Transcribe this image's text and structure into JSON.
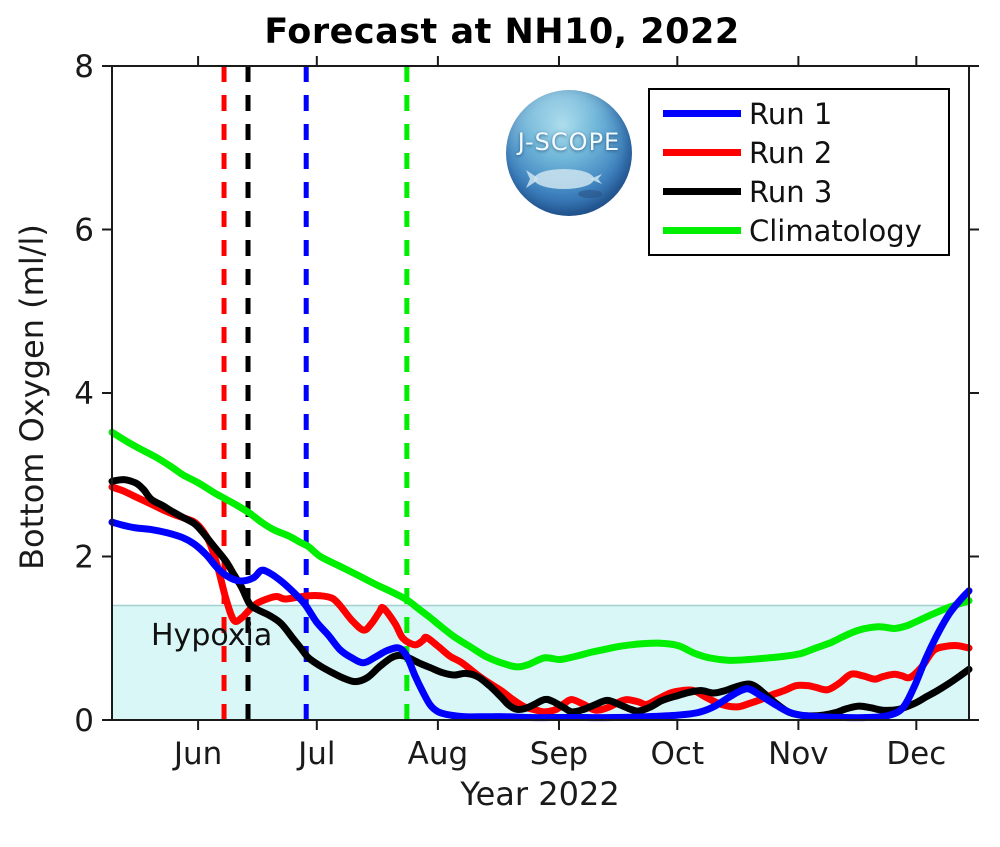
{
  "page": {
    "title": "Forecast at NH10, 2022"
  },
  "logo": {
    "text": "J-SCOPE"
  },
  "chart_data": {
    "type": "line",
    "title": "Forecast at NH10, 2022",
    "xlabel": "Year 2022",
    "ylabel": "Bottom Oxygen (ml/l)",
    "ylim": [
      0,
      8
    ],
    "y_ticks": [
      0,
      2,
      4,
      6,
      8
    ],
    "x_unit": "days since May 10, 2022",
    "xlim": [
      0,
      218
    ],
    "x_ticks": [
      {
        "label": "Jun",
        "day": 21.9
      },
      {
        "label": "Jul",
        "day": 52.1
      },
      {
        "label": "Aug",
        "day": 82.9
      },
      {
        "label": "Sep",
        "day": 113.7
      },
      {
        "label": "Oct",
        "day": 143.8
      },
      {
        "label": "Nov",
        "day": 174.6
      },
      {
        "label": "Dec",
        "day": 204.6
      }
    ],
    "grid": false,
    "legend_position": "top-right",
    "axis_color": "#1a1a1a",
    "hypoxia": {
      "label": "Hypoxia",
      "threshold": 1.4,
      "fill": "#daf7f8",
      "edge": "#a3cfcf"
    },
    "forecast_init_lines": [
      {
        "series": "Run 2",
        "color": "#ff0000",
        "day": 28.5
      },
      {
        "series": "Run 3",
        "color": "#000000",
        "day": 34.6
      },
      {
        "series": "Run 1",
        "color": "#0000ff",
        "day": 49.4
      },
      {
        "series": "Climatology",
        "color": "#00ee00",
        "day": 75.0
      }
    ],
    "series": [
      {
        "name": "Run 1",
        "color": "#0000ff",
        "points": [
          [
            0,
            2.42
          ],
          [
            3,
            2.38
          ],
          [
            6,
            2.35
          ],
          [
            10,
            2.33
          ],
          [
            14,
            2.29
          ],
          [
            18,
            2.23
          ],
          [
            21,
            2.15
          ],
          [
            24,
            2.02
          ],
          [
            27,
            1.85
          ],
          [
            30,
            1.74
          ],
          [
            33,
            1.7
          ],
          [
            36,
            1.74
          ],
          [
            38,
            1.83
          ],
          [
            40,
            1.8
          ],
          [
            43,
            1.7
          ],
          [
            46,
            1.57
          ],
          [
            49,
            1.42
          ],
          [
            52,
            1.2
          ],
          [
            55,
            1.04
          ],
          [
            58,
            0.86
          ],
          [
            61,
            0.76
          ],
          [
            64,
            0.7
          ],
          [
            67,
            0.77
          ],
          [
            70,
            0.85
          ],
          [
            73,
            0.88
          ],
          [
            75,
            0.78
          ],
          [
            77,
            0.55
          ],
          [
            79,
            0.35
          ],
          [
            81,
            0.18
          ],
          [
            83,
            0.1
          ],
          [
            86,
            0.06
          ],
          [
            90,
            0.04
          ],
          [
            95,
            0.04
          ],
          [
            100,
            0.04
          ],
          [
            106,
            0.03
          ],
          [
            112,
            0.03
          ],
          [
            120,
            0.03
          ],
          [
            128,
            0.03
          ],
          [
            136,
            0.04
          ],
          [
            144,
            0.06
          ],
          [
            149,
            0.09
          ],
          [
            153,
            0.16
          ],
          [
            157,
            0.28
          ],
          [
            160,
            0.36
          ],
          [
            162,
            0.38
          ],
          [
            165,
            0.3
          ],
          [
            169,
            0.18
          ],
          [
            172,
            0.1
          ],
          [
            175,
            0.06
          ],
          [
            180,
            0.04
          ],
          [
            186,
            0.03
          ],
          [
            192,
            0.03
          ],
          [
            197,
            0.05
          ],
          [
            201,
            0.14
          ],
          [
            204,
            0.4
          ],
          [
            207,
            0.75
          ],
          [
            210,
            1.05
          ],
          [
            213,
            1.3
          ],
          [
            216,
            1.48
          ],
          [
            218,
            1.58
          ]
        ]
      },
      {
        "name": "Run 2",
        "color": "#ff0000",
        "points": [
          [
            0,
            2.85
          ],
          [
            3,
            2.8
          ],
          [
            6,
            2.73
          ],
          [
            10,
            2.64
          ],
          [
            13,
            2.57
          ],
          [
            16,
            2.51
          ],
          [
            19,
            2.46
          ],
          [
            21,
            2.42
          ],
          [
            23,
            2.32
          ],
          [
            25,
            2.15
          ],
          [
            27,
            1.85
          ],
          [
            29,
            1.48
          ],
          [
            31,
            1.22
          ],
          [
            33,
            1.25
          ],
          [
            35,
            1.35
          ],
          [
            37,
            1.43
          ],
          [
            40,
            1.49
          ],
          [
            42,
            1.51
          ],
          [
            44,
            1.48
          ],
          [
            47,
            1.5
          ],
          [
            50,
            1.52
          ],
          [
            53,
            1.52
          ],
          [
            56,
            1.49
          ],
          [
            58,
            1.4
          ],
          [
            61,
            1.22
          ],
          [
            64,
            1.1
          ],
          [
            66,
            1.18
          ],
          [
            68,
            1.32
          ],
          [
            69,
            1.37
          ],
          [
            72,
            1.18
          ],
          [
            74,
            1.0
          ],
          [
            77,
            0.92
          ],
          [
            79,
            0.97
          ],
          [
            80,
            1.01
          ],
          [
            83,
            0.9
          ],
          [
            86,
            0.78
          ],
          [
            89,
            0.7
          ],
          [
            93,
            0.55
          ],
          [
            96,
            0.45
          ],
          [
            99,
            0.36
          ],
          [
            102,
            0.25
          ],
          [
            105,
            0.16
          ],
          [
            108,
            0.12
          ],
          [
            110,
            0.1
          ],
          [
            113,
            0.13
          ],
          [
            115,
            0.2
          ],
          [
            117,
            0.25
          ],
          [
            120,
            0.19
          ],
          [
            123,
            0.12
          ],
          [
            126,
            0.15
          ],
          [
            129,
            0.22
          ],
          [
            131,
            0.25
          ],
          [
            134,
            0.22
          ],
          [
            136,
            0.19
          ],
          [
            139,
            0.26
          ],
          [
            142,
            0.33
          ],
          [
            145,
            0.36
          ],
          [
            148,
            0.36
          ],
          [
            151,
            0.28
          ],
          [
            155,
            0.19
          ],
          [
            159,
            0.16
          ],
          [
            162,
            0.2
          ],
          [
            165,
            0.25
          ],
          [
            168,
            0.31
          ],
          [
            171,
            0.36
          ],
          [
            174,
            0.42
          ],
          [
            177,
            0.42
          ],
          [
            179,
            0.4
          ],
          [
            182,
            0.37
          ],
          [
            185,
            0.45
          ],
          [
            188,
            0.56
          ],
          [
            191,
            0.54
          ],
          [
            194,
            0.5
          ],
          [
            196,
            0.53
          ],
          [
            199,
            0.56
          ],
          [
            201,
            0.54
          ],
          [
            203,
            0.52
          ],
          [
            206,
            0.65
          ],
          [
            209,
            0.85
          ],
          [
            212,
            0.9
          ],
          [
            215,
            0.91
          ],
          [
            218,
            0.88
          ]
        ]
      },
      {
        "name": "Run 3",
        "color": "#000000",
        "points": [
          [
            0,
            2.92
          ],
          [
            3,
            2.94
          ],
          [
            6,
            2.9
          ],
          [
            8,
            2.82
          ],
          [
            10,
            2.7
          ],
          [
            13,
            2.62
          ],
          [
            15,
            2.56
          ],
          [
            18,
            2.48
          ],
          [
            21,
            2.4
          ],
          [
            23,
            2.3
          ],
          [
            26,
            2.12
          ],
          [
            29,
            1.94
          ],
          [
            31,
            1.78
          ],
          [
            33,
            1.62
          ],
          [
            35,
            1.42
          ],
          [
            37,
            1.35
          ],
          [
            40,
            1.28
          ],
          [
            43,
            1.18
          ],
          [
            46,
            1.0
          ],
          [
            48,
            0.88
          ],
          [
            50,
            0.76
          ],
          [
            53,
            0.66
          ],
          [
            56,
            0.58
          ],
          [
            59,
            0.51
          ],
          [
            62,
            0.47
          ],
          [
            65,
            0.52
          ],
          [
            68,
            0.65
          ],
          [
            71,
            0.76
          ],
          [
            73,
            0.79
          ],
          [
            75,
            0.77
          ],
          [
            78,
            0.7
          ],
          [
            81,
            0.64
          ],
          [
            84,
            0.58
          ],
          [
            87,
            0.55
          ],
          [
            90,
            0.57
          ],
          [
            93,
            0.53
          ],
          [
            96,
            0.42
          ],
          [
            99,
            0.28
          ],
          [
            101,
            0.18
          ],
          [
            103,
            0.13
          ],
          [
            105,
            0.14
          ],
          [
            107,
            0.18
          ],
          [
            110,
            0.25
          ],
          [
            112,
            0.23
          ],
          [
            115,
            0.15
          ],
          [
            117,
            0.1
          ],
          [
            120,
            0.13
          ],
          [
            123,
            0.19
          ],
          [
            126,
            0.24
          ],
          [
            129,
            0.19
          ],
          [
            132,
            0.13
          ],
          [
            134,
            0.11
          ],
          [
            137,
            0.16
          ],
          [
            140,
            0.24
          ],
          [
            144,
            0.3
          ],
          [
            147,
            0.34
          ],
          [
            150,
            0.36
          ],
          [
            153,
            0.33
          ],
          [
            156,
            0.36
          ],
          [
            159,
            0.41
          ],
          [
            162,
            0.44
          ],
          [
            164,
            0.4
          ],
          [
            166,
            0.32
          ],
          [
            169,
            0.2
          ],
          [
            172,
            0.1
          ],
          [
            175,
            0.06
          ],
          [
            178,
            0.05
          ],
          [
            181,
            0.06
          ],
          [
            184,
            0.09
          ],
          [
            187,
            0.14
          ],
          [
            190,
            0.17
          ],
          [
            193,
            0.15
          ],
          [
            196,
            0.12
          ],
          [
            200,
            0.13
          ],
          [
            204,
            0.2
          ],
          [
            207,
            0.28
          ],
          [
            210,
            0.36
          ],
          [
            213,
            0.45
          ],
          [
            216,
            0.55
          ],
          [
            218,
            0.62
          ]
        ]
      },
      {
        "name": "Climatology",
        "color": "#00ee00",
        "points": [
          [
            0,
            3.52
          ],
          [
            4,
            3.4
          ],
          [
            7,
            3.32
          ],
          [
            11,
            3.22
          ],
          [
            15,
            3.1
          ],
          [
            18,
            3.0
          ],
          [
            22,
            2.9
          ],
          [
            26,
            2.78
          ],
          [
            29,
            2.7
          ],
          [
            32,
            2.62
          ],
          [
            35,
            2.53
          ],
          [
            38,
            2.42
          ],
          [
            41,
            2.33
          ],
          [
            45,
            2.25
          ],
          [
            48,
            2.17
          ],
          [
            50,
            2.12
          ],
          [
            53,
            2.0
          ],
          [
            58,
            1.88
          ],
          [
            63,
            1.76
          ],
          [
            67,
            1.66
          ],
          [
            71,
            1.57
          ],
          [
            75,
            1.47
          ],
          [
            78,
            1.36
          ],
          [
            81,
            1.25
          ],
          [
            83,
            1.17
          ],
          [
            87,
            1.02
          ],
          [
            91,
            0.9
          ],
          [
            95,
            0.78
          ],
          [
            99,
            0.7
          ],
          [
            103,
            0.65
          ],
          [
            106,
            0.68
          ],
          [
            110,
            0.76
          ],
          [
            114,
            0.74
          ],
          [
            118,
            0.78
          ],
          [
            122,
            0.83
          ],
          [
            125,
            0.86
          ],
          [
            129,
            0.9
          ],
          [
            134,
            0.93
          ],
          [
            139,
            0.94
          ],
          [
            144,
            0.91
          ],
          [
            148,
            0.82
          ],
          [
            152,
            0.76
          ],
          [
            157,
            0.73
          ],
          [
            162,
            0.74
          ],
          [
            167,
            0.76
          ],
          [
            171,
            0.78
          ],
          [
            175,
            0.81
          ],
          [
            179,
            0.88
          ],
          [
            183,
            0.95
          ],
          [
            186,
            1.02
          ],
          [
            190,
            1.1
          ],
          [
            195,
            1.14
          ],
          [
            199,
            1.12
          ],
          [
            202,
            1.15
          ],
          [
            204,
            1.19
          ],
          [
            209,
            1.3
          ],
          [
            213,
            1.38
          ],
          [
            218,
            1.46
          ]
        ]
      }
    ]
  }
}
